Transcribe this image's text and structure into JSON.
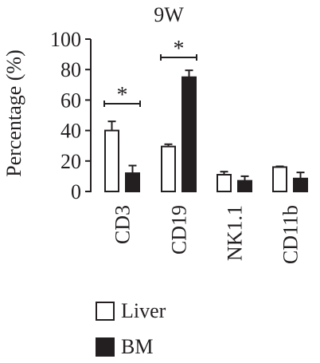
{
  "chart_data": {
    "type": "bar",
    "title": "9W",
    "ylabel": "Percentage (%)",
    "xlabel": "",
    "categories": [
      "CD3",
      "CD19",
      "NK1.1",
      "CD11b"
    ],
    "ylim": [
      0,
      100
    ],
    "yticks": [
      0,
      20,
      40,
      60,
      80,
      100
    ],
    "series": [
      {
        "name": "Liver",
        "values": [
          40,
          29.5,
          11,
          16
        ],
        "errors": [
          6,
          1.5,
          2,
          0.5
        ],
        "color": "#ffffff"
      },
      {
        "name": "BM",
        "values": [
          12,
          75,
          7,
          8.5
        ],
        "errors": [
          5,
          4.5,
          3,
          4
        ],
        "color": "#231f20"
      }
    ],
    "annotations": [
      {
        "label": "*",
        "category": "CD3"
      },
      {
        "label": "*",
        "category": "CD19"
      }
    ],
    "legend_position": "bottom"
  }
}
